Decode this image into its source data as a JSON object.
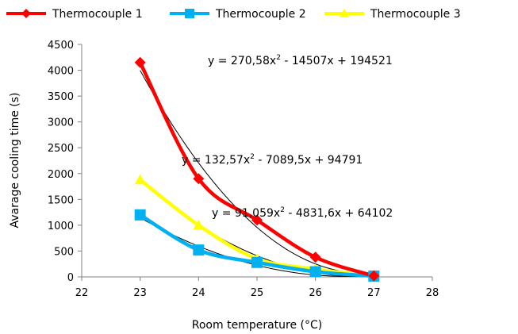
{
  "chart_data": {
    "type": "line",
    "xlabel": "Room temperature  (°C)",
    "ylabel": "Avarage cooling time  (s)",
    "xlim": [
      22,
      28
    ],
    "ylim": [
      0,
      4500
    ],
    "x_ticks": [
      "22",
      "23",
      "24",
      "25",
      "26",
      "27",
      "28"
    ],
    "y_ticks": [
      "0",
      "500",
      "1000",
      "1500",
      "2000",
      "2500",
      "3000",
      "3500",
      "4000",
      "4500"
    ],
    "grid": false,
    "legend_position": "top",
    "series": [
      {
        "name": "Thermocouple 1",
        "color": "#ff0000",
        "marker": "diamond",
        "x": [
          23,
          24,
          25,
          26,
          27
        ],
        "y": [
          4150,
          1900,
          1100,
          380,
          20
        ]
      },
      {
        "name": "Thermocouple 2",
        "color": "#00b0f0",
        "marker": "square",
        "x": [
          23,
          24,
          25,
          26,
          27
        ],
        "y": [
          1200,
          520,
          280,
          100,
          15
        ]
      },
      {
        "name": "Thermocouple 3",
        "color": "#ffff00",
        "marker": "triangle",
        "x": [
          23,
          24,
          25,
          26,
          27
        ],
        "y": [
          1880,
          1000,
          350,
          150,
          10
        ]
      }
    ],
    "trendlines": [
      {
        "type": "polynomial-2",
        "coefficients": [
          270.58,
          -14507,
          194521
        ],
        "color": "#000000"
      },
      {
        "type": "polynomial-2",
        "coefficients": [
          132.57,
          -7089.5,
          94791
        ],
        "color": "#000000"
      },
      {
        "type": "polynomial-2",
        "coefficients": [
          91.059,
          -4831.6,
          64102
        ],
        "color": "#000000"
      }
    ],
    "annotations": [
      {
        "pre": "y = 270,58x",
        "post": " - 14507x + 194521"
      },
      {
        "pre": "y = 132,57x",
        "post": " - 7089,5x + 94791"
      },
      {
        "pre": "y = 91,059x",
        "post": " - 4831,6x + 64102"
      }
    ],
    "superscript": "2"
  }
}
